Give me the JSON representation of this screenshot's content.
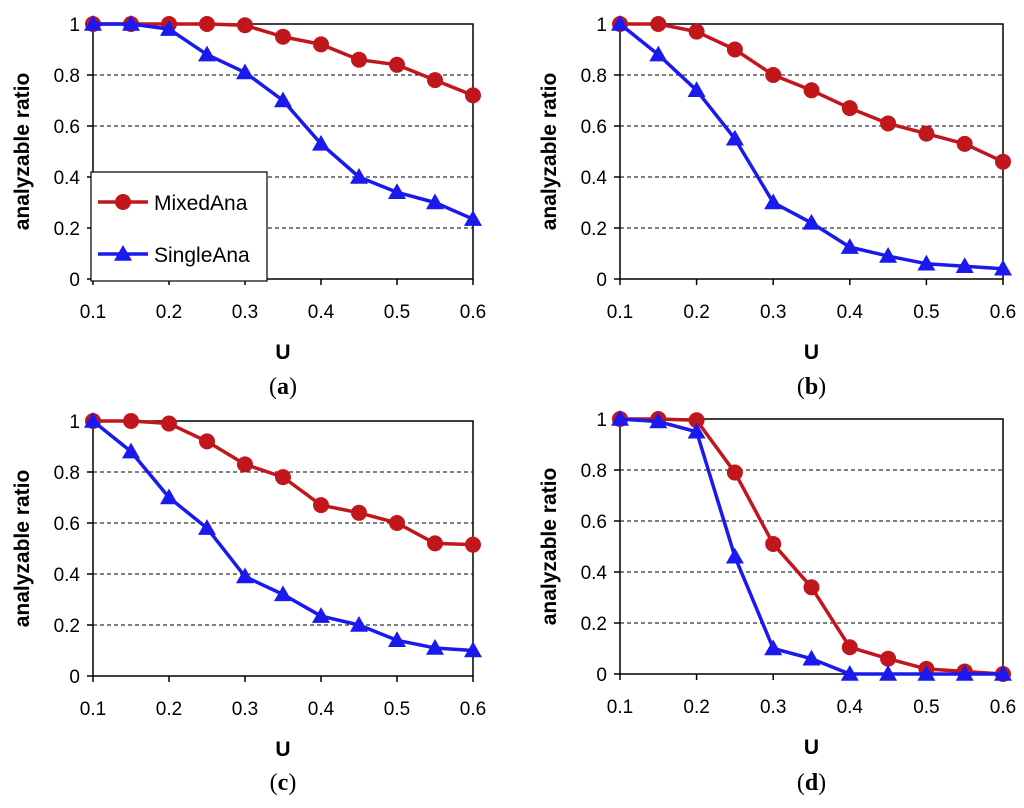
{
  "series_colors": {
    "MixedAna": "#c0161c",
    "SingleAna": "#1a1aee"
  },
  "chart_data": [
    {
      "type": "line",
      "caption": "a",
      "xlabel": "U",
      "ylabel": "analyzable ratio",
      "x": [
        0.1,
        0.15,
        0.2,
        0.25,
        0.3,
        0.35,
        0.4,
        0.45,
        0.5,
        0.55,
        0.6
      ],
      "xlim": [
        0.1,
        0.6
      ],
      "ylim": [
        0,
        1
      ],
      "xticks": [
        "0.1",
        "0.2",
        "0.3",
        "0.4",
        "0.5",
        "0.6"
      ],
      "yticks": [
        "0",
        "0.2",
        "0.4",
        "0.6",
        "0.8",
        "1"
      ],
      "grid": "horizontal dashed",
      "legend": "bottom-left",
      "series": [
        {
          "name": "MixedAna",
          "marker": "circle",
          "values": [
            1.0,
            1.0,
            1.0,
            1.0,
            0.995,
            0.95,
            0.92,
            0.86,
            0.84,
            0.78,
            0.72
          ]
        },
        {
          "name": "SingleAna",
          "marker": "triangle",
          "values": [
            1.0,
            1.0,
            0.98,
            0.88,
            0.81,
            0.7,
            0.53,
            0.4,
            0.34,
            0.3,
            0.235
          ]
        }
      ]
    },
    {
      "type": "line",
      "caption": "b",
      "xlabel": "U",
      "ylabel": "analyzable ratio",
      "x": [
        0.1,
        0.15,
        0.2,
        0.25,
        0.3,
        0.35,
        0.4,
        0.45,
        0.5,
        0.55,
        0.6
      ],
      "xlim": [
        0.1,
        0.6
      ],
      "ylim": [
        0,
        1
      ],
      "xticks": [
        "0.1",
        "0.2",
        "0.3",
        "0.4",
        "0.5",
        "0.6"
      ],
      "yticks": [
        "0",
        "0.2",
        "0.4",
        "0.6",
        "0.8",
        "1"
      ],
      "grid": "horizontal dashed",
      "series": [
        {
          "name": "MixedAna",
          "marker": "circle",
          "values": [
            1.0,
            1.0,
            0.97,
            0.9,
            0.8,
            0.74,
            0.67,
            0.61,
            0.57,
            0.53,
            0.46
          ]
        },
        {
          "name": "SingleAna",
          "marker": "triangle",
          "values": [
            1.0,
            0.88,
            0.74,
            0.55,
            0.3,
            0.22,
            0.125,
            0.09,
            0.06,
            0.05,
            0.04
          ]
        }
      ]
    },
    {
      "type": "line",
      "caption": "c",
      "xlabel": "U",
      "ylabel": "analyzable ratio",
      "x": [
        0.1,
        0.15,
        0.2,
        0.25,
        0.3,
        0.35,
        0.4,
        0.45,
        0.5,
        0.55,
        0.6
      ],
      "xlim": [
        0.1,
        0.6
      ],
      "ylim": [
        0,
        1
      ],
      "xticks": [
        "0.1",
        "0.2",
        "0.3",
        "0.4",
        "0.5",
        "0.6"
      ],
      "yticks": [
        "0",
        "0.2",
        "0.4",
        "0.6",
        "0.8",
        "1"
      ],
      "grid": "horizontal dashed",
      "series": [
        {
          "name": "MixedAna",
          "marker": "circle",
          "values": [
            1.0,
            1.0,
            0.99,
            0.92,
            0.83,
            0.78,
            0.67,
            0.64,
            0.6,
            0.52,
            0.515
          ]
        },
        {
          "name": "SingleAna",
          "marker": "triangle",
          "values": [
            1.0,
            0.88,
            0.7,
            0.58,
            0.39,
            0.32,
            0.235,
            0.2,
            0.14,
            0.11,
            0.1
          ]
        }
      ]
    },
    {
      "type": "line",
      "caption": "d",
      "xlabel": "U",
      "ylabel": "analyzable ratio",
      "x": [
        0.1,
        0.15,
        0.2,
        0.25,
        0.3,
        0.35,
        0.4,
        0.45,
        0.5,
        0.55,
        0.6
      ],
      "xlim": [
        0.1,
        0.6
      ],
      "ylim": [
        0,
        1
      ],
      "xticks": [
        "0.1",
        "0.2",
        "0.3",
        "0.4",
        "0.5",
        "0.6"
      ],
      "yticks": [
        "0",
        "0.2",
        "0.4",
        "0.6",
        "0.8",
        "1"
      ],
      "grid": "horizontal dashed",
      "series": [
        {
          "name": "MixedAna",
          "marker": "circle",
          "values": [
            1.0,
            1.0,
            0.995,
            0.79,
            0.51,
            0.34,
            0.105,
            0.06,
            0.02,
            0.01,
            0.0
          ]
        },
        {
          "name": "SingleAna",
          "marker": "triangle",
          "values": [
            1.0,
            0.99,
            0.95,
            0.46,
            0.1,
            0.06,
            0.0,
            0.0,
            0.0,
            0.0,
            0.0
          ]
        }
      ]
    }
  ]
}
